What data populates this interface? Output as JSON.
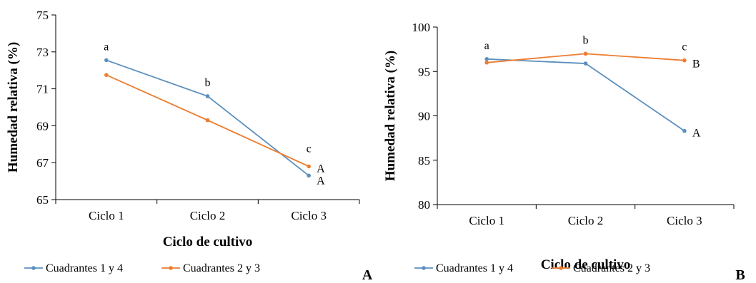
{
  "chart_data": [
    {
      "type": "line",
      "panel_label": "A",
      "categories": [
        "Ciclo 1",
        "Ciclo 2",
        "Ciclo 3"
      ],
      "xlabel": "Ciclo de cultivo",
      "ylabel": "Humedad relativa (%)",
      "ylim": [
        65,
        75
      ],
      "yticks": [
        65,
        67,
        69,
        71,
        73,
        75
      ],
      "grid": false,
      "legend": "bottom",
      "series": [
        {
          "name": "Cuadrantes 1 y 4",
          "values": [
            72.55,
            70.6,
            66.3
          ],
          "color": "#5b8fbe"
        },
        {
          "name": "Cuadrantes 2 y 3",
          "values": [
            71.75,
            69.3,
            66.8
          ],
          "color": "#ed7d31"
        }
      ],
      "annotations": {
        "category_letters": [
          "a",
          "b",
          "c"
        ],
        "series_end_letters": [
          "A",
          "A"
        ]
      }
    },
    {
      "type": "line",
      "panel_label": "B",
      "categories": [
        "Ciclo 1",
        "Ciclo 2",
        "Ciclo 3"
      ],
      "xlabel": "Ciclo de cultivo",
      "ylabel": "Humedad relativa (%)",
      "ylim": [
        80,
        100
      ],
      "yticks": [
        80,
        85,
        90,
        95,
        100
      ],
      "grid": false,
      "legend": "bottom",
      "series": [
        {
          "name": "Cuadrantes 1 y 4",
          "values": [
            96.4,
            95.9,
            88.3
          ],
          "color": "#5b8fbe"
        },
        {
          "name": "Cuadrantes 2 y 3",
          "values": [
            96.0,
            97.0,
            96.25
          ],
          "color": "#ed7d31"
        }
      ],
      "annotations": {
        "category_letters": [
          "a",
          "b",
          "c"
        ],
        "series_end_letters": [
          "A",
          "B"
        ]
      }
    }
  ]
}
